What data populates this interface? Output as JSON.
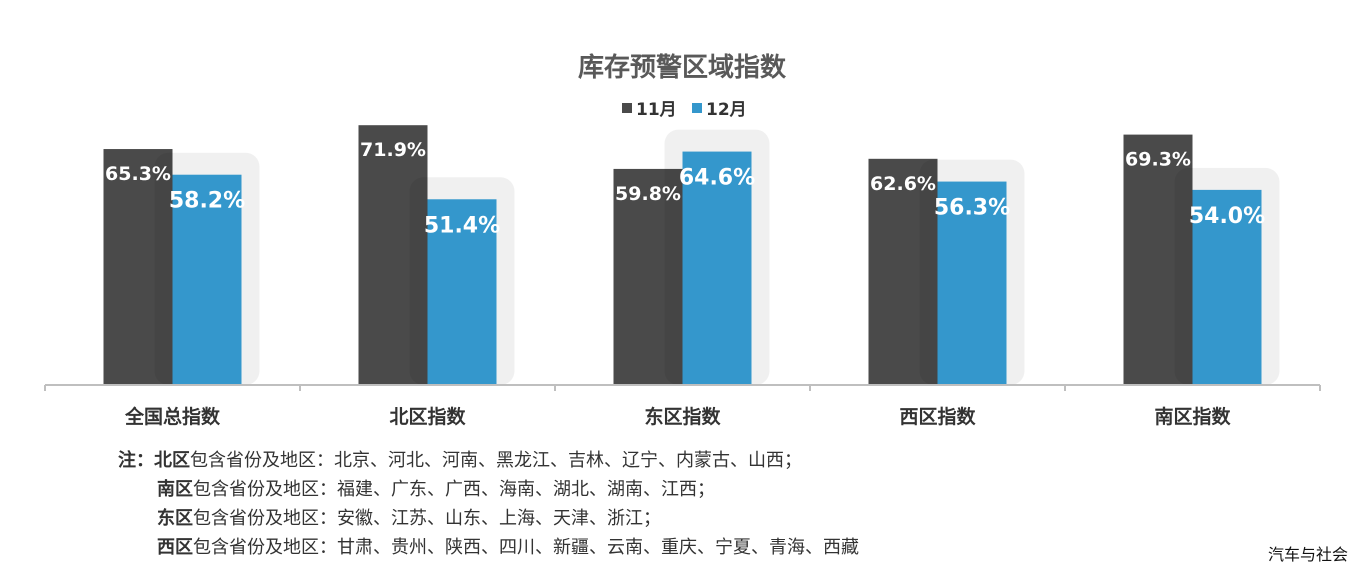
{
  "chart_data": {
    "type": "bar",
    "title": "库存预警区域指数",
    "categories": [
      "全国总指数",
      "北区指数",
      "东区指数",
      "西区指数",
      "南区指数"
    ],
    "series": [
      {
        "name": "11月",
        "color": "#4a4a4a",
        "values": [
          65.3,
          71.9,
          59.8,
          62.6,
          69.3
        ]
      },
      {
        "name": "12月",
        "color": "#3497cc",
        "values": [
          58.2,
          51.4,
          64.6,
          56.3,
          54.0
        ]
      }
    ],
    "value_labels": [
      [
        "65.3%",
        "71.9%",
        "59.8%",
        "62.6%",
        "69.3%"
      ],
      [
        "58.2%",
        "51.4%",
        "64.6%",
        "56.3%",
        "54.0%"
      ]
    ],
    "ylim": [
      0,
      75
    ],
    "grid": false,
    "legend_position": "top-center"
  },
  "notes": {
    "prefix": "注：",
    "items": [
      {
        "region": "北区",
        "desc": "包含省份及地区：",
        "list": "北京、河北、河南、黑龙江、吉林、辽宁、内蒙古、山西；"
      },
      {
        "region": "南区",
        "desc": "包含省份及地区：",
        "list": "福建、广东、广西、海南、湖北、湖南、江西；"
      },
      {
        "region": "东区",
        "desc": "包含省份及地区：",
        "list": "安徽、江苏、山东、上海、天津、浙江；"
      },
      {
        "region": "西区",
        "desc": "包含省份及地区：",
        "list": "甘肃、贵州、陕西、四川、新疆、云南、重庆、宁夏、青海、西藏"
      }
    ]
  },
  "watermark": "汽车与社会",
  "colors": {
    "axis": "#bfbfbf",
    "text": "#333333",
    "title": "#595959"
  }
}
